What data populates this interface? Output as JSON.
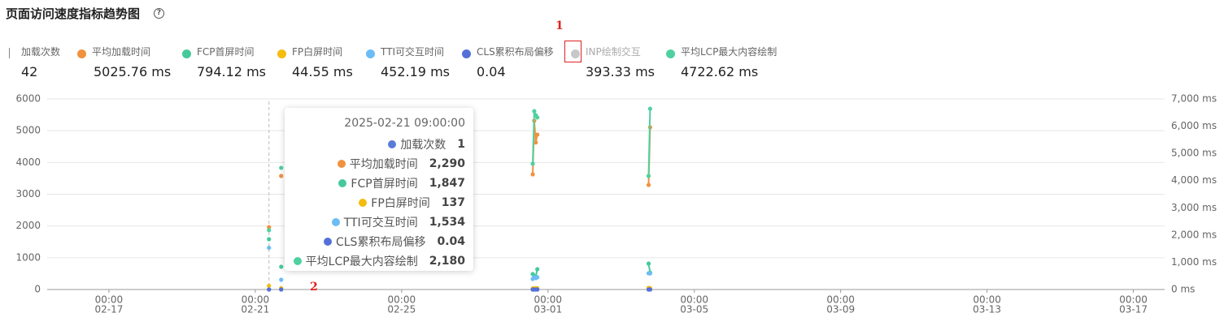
{
  "header": {
    "title": "页面访问速度指标趋势图"
  },
  "metrics": [
    {
      "label": "加载次数",
      "value": "42"
    },
    {
      "label": "平均加载时间",
      "value": "5025.76 ms",
      "color": "#f0923e"
    },
    {
      "label": "FCP首屏时间",
      "value": "794.12 ms",
      "color": "#45c99a"
    },
    {
      "label": "FP白屏时间",
      "value": "44.55 ms",
      "color": "#f5bc10"
    },
    {
      "label": "TTI可交互时间",
      "value": "452.19 ms",
      "color": "#6cbcf5"
    },
    {
      "label": "CLS累积布局偏移",
      "value": "0.04",
      "color": "#5470d8"
    },
    {
      "label": "INP绘制交互",
      "value": "393.33 ms",
      "color": "#c8c8c8"
    },
    {
      "label": "平均LCP最大内容绘制",
      "value": "4722.62 ms",
      "color": "#4fd19f"
    }
  ],
  "annotations": [
    "1",
    "2"
  ],
  "chart_data": {
    "type": "line",
    "x": [
      "02-21 09:00",
      "02-21 17:00",
      "02-28 14:00",
      "02-28 15:00",
      "02-28 16:00",
      "02-28 17:00",
      "03-03 18:00",
      "03-03 19:00"
    ],
    "xlim": [
      "02-15 07:30",
      "03-17 20:30"
    ],
    "xticks": [
      {
        "value": "02-17 00:00",
        "label": [
          "00:00",
          "02-17"
        ]
      },
      {
        "value": "02-21 00:00",
        "label": [
          "00:00",
          "02-21"
        ]
      },
      {
        "value": "02-25 00:00",
        "label": [
          "00:00",
          "02-25"
        ]
      },
      {
        "value": "03-01 00:00",
        "label": [
          "00:00",
          "03-01"
        ]
      },
      {
        "value": "03-05 00:00",
        "label": [
          "00:00",
          "03-05"
        ]
      },
      {
        "value": "03-09 00:00",
        "label": [
          "00:00",
          "03-09"
        ]
      },
      {
        "value": "03-13 00:00",
        "label": [
          "00:00",
          "03-13"
        ]
      },
      {
        "value": "03-17 00:00",
        "label": [
          "00:00",
          "03-17"
        ]
      }
    ],
    "ylim": [
      0,
      6000
    ],
    "yticks": [
      0,
      1000,
      2000,
      3000,
      4000,
      5000,
      6000
    ],
    "y2lim": [
      0,
      7000
    ],
    "y2ticks": [
      {
        "value": 0,
        "label": "0 ms"
      },
      {
        "value": 1000,
        "label": "1,000 ms"
      },
      {
        "value": 2000,
        "label": "2,000 ms"
      },
      {
        "value": 3000,
        "label": "3,000 ms"
      },
      {
        "value": 4000,
        "label": "4,000 ms"
      },
      {
        "value": 5000,
        "label": "5,000 ms"
      },
      {
        "value": 6000,
        "label": "6,000 ms"
      },
      {
        "value": 7000,
        "label": "7,000 ms"
      }
    ],
    "grid": true,
    "series": [
      {
        "name": "加载次数",
        "color": "#5b7bd8",
        "values": [
          1,
          1,
          3,
          2,
          2,
          2,
          2,
          1
        ]
      },
      {
        "name": "平均加载时间",
        "color": "#f0923e",
        "axis": "y2",
        "values": [
          2290,
          4170,
          4230,
          6200,
          5400,
          5690,
          3840,
          5960
        ]
      },
      {
        "name": "FCP首屏时间",
        "color": "#45c99a",
        "axis": "y2",
        "values": [
          1847,
          835,
          566,
          500,
          480,
          745,
          953,
          620
        ]
      },
      {
        "name": "FP白屏时间",
        "color": "#f5bc10",
        "axis": "y2",
        "values": [
          137,
          50,
          40,
          40,
          40,
          50,
          60,
          50
        ]
      },
      {
        "name": "TTI可交互时间",
        "color": "#6cbcf5",
        "axis": "y2",
        "values": [
          1534,
          357,
          387,
          450,
          420,
          447,
          596,
          590
        ]
      },
      {
        "name": "CLS累积布局偏移",
        "color": "#5470d8",
        "values": [
          0.04,
          0,
          0,
          0,
          0,
          0,
          0,
          0
        ]
      },
      {
        "name": "平均LCP最大内容绘制",
        "color": "#4fd19f",
        "axis": "y2",
        "values": [
          2180,
          4470,
          4620,
          6550,
          6400,
          6320,
          4170,
          6640
        ]
      }
    ],
    "tooltip": {
      "title": "2025-02-21 09:00:00",
      "values": [
        1,
        {
          "value": 2290,
          "label": "2,290"
        },
        {
          "value": 1847,
          "label": "1,847"
        },
        137,
        {
          "value": 1534,
          "label": "1,534"
        },
        0.04,
        {
          "value": 2180,
          "label": "2,180"
        }
      ]
    }
  }
}
